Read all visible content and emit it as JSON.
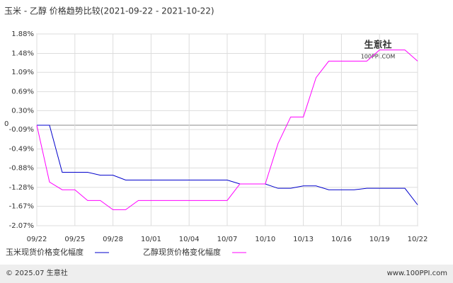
{
  "chart_data": {
    "type": "line",
    "title": "玉米 - 乙醇 价格趋势比较(2021-09-22 - 2021-10-22)",
    "categories": [
      "09/22",
      null,
      null,
      "09/25",
      null,
      null,
      "09/28",
      null,
      null,
      "10/01",
      null,
      null,
      "10/04",
      null,
      null,
      "10/07",
      null,
      null,
      "10/10",
      null,
      null,
      "10/13",
      null,
      null,
      "10/16",
      null,
      null,
      "10/19",
      null,
      null,
      "10/22"
    ],
    "series": [
      {
        "name": "玉米现货价格变化幅度",
        "color": "#0000cc",
        "values": [
          0,
          0,
          -0.97,
          -0.97,
          -0.97,
          -1.03,
          -1.03,
          -1.13,
          -1.13,
          -1.13,
          -1.13,
          -1.13,
          -1.13,
          -1.13,
          -1.13,
          -1.13,
          -1.21,
          -1.21,
          -1.21,
          -1.3,
          -1.3,
          -1.25,
          -1.25,
          -1.33,
          -1.33,
          -1.33,
          -1.3,
          -1.3,
          -1.3,
          -1.3,
          -1.64
        ]
      },
      {
        "name": "乙醇现货价格变化幅度",
        "color": "#ff00ff",
        "values": [
          0,
          -1.17,
          -1.33,
          -1.33,
          -1.55,
          -1.55,
          -1.74,
          -1.74,
          -1.55,
          -1.55,
          -1.55,
          -1.55,
          -1.55,
          -1.55,
          -1.55,
          -1.55,
          -1.21,
          -1.21,
          -1.21,
          -0.38,
          0.17,
          0.17,
          0.98,
          1.32,
          1.32,
          1.32,
          1.32,
          1.55,
          1.55,
          1.55,
          1.32
        ]
      }
    ],
    "ylim": [
      -2.07,
      1.88
    ],
    "yticks": [
      {
        "value": 1.88,
        "label": "1.88%"
      },
      {
        "value": 1.48,
        "label": "1.48%"
      },
      {
        "value": 1.09,
        "label": "1.09%"
      },
      {
        "value": 0.69,
        "label": "0.69%"
      },
      {
        "value": 0.3,
        "label": "0.30%"
      },
      0,
      {
        "value": -0.09,
        "label": "-0.09%"
      },
      {
        "value": -0.49,
        "label": "-0.49%"
      },
      {
        "value": -0.88,
        "label": "-0.88%"
      },
      {
        "value": -1.28,
        "label": "-1.28%"
      },
      {
        "value": -1.67,
        "label": "-1.67%"
      },
      {
        "value": -2.07,
        "label": "-2.07%"
      }
    ],
    "grid": true,
    "watermark": "生意社",
    "watermark_url": "100PPI.COM",
    "footer_left": "© 2025.07 生意社",
    "footer_right": "www.100PPI.com"
  }
}
